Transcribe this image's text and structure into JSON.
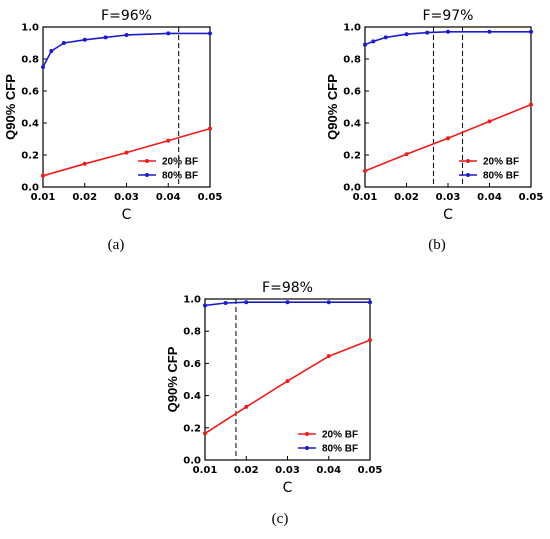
{
  "colors": {
    "series1": "#ee1c1c",
    "series2": "#1c1ccc",
    "dashed": "#000000"
  },
  "chart_data": [
    {
      "type": "line",
      "panel_caption": "(a)",
      "title": "F=96%",
      "xlabel": "C",
      "ylabel": "Q90% CFP",
      "xlim": [
        0.01,
        0.05
      ],
      "ylim": [
        0,
        1.0
      ],
      "xticks": [
        "0.01",
        "0.02",
        "0.03",
        "0.04",
        "0.05"
      ],
      "yticks": [
        "0.0",
        "0.2",
        "0.4",
        "0.6",
        "0.8",
        "1.0"
      ],
      "legend_position": "bottom-right",
      "series": [
        {
          "name": "20% BF",
          "color": "#ee1c1c",
          "x": [
            0.01,
            0.02,
            0.03,
            0.04,
            0.05
          ],
          "y": [
            0.07,
            0.145,
            0.215,
            0.29,
            0.365
          ]
        },
        {
          "name": "80% BF",
          "color": "#1c1ccc",
          "x": [
            0.01,
            0.012,
            0.015,
            0.02,
            0.025,
            0.03,
            0.04,
            0.05
          ],
          "y": [
            0.75,
            0.85,
            0.9,
            0.92,
            0.935,
            0.95,
            0.96,
            0.96
          ]
        }
      ],
      "dashed_lines_x": [
        0.0425,
        0.05
      ]
    },
    {
      "type": "line",
      "panel_caption": "(b)",
      "title": "F=97%",
      "xlabel": "C",
      "ylabel": "Q90% CFP",
      "xlim": [
        0.01,
        0.05
      ],
      "ylim": [
        0,
        1.0
      ],
      "xticks": [
        "0.01",
        "0.02",
        "0.03",
        "0.04",
        "0.05"
      ],
      "yticks": [
        "0.0",
        "0.2",
        "0.4",
        "0.6",
        "0.8",
        "1.0"
      ],
      "legend_position": "bottom-right",
      "series": [
        {
          "name": "20% BF",
          "color": "#ee1c1c",
          "x": [
            0.01,
            0.02,
            0.03,
            0.04,
            0.05
          ],
          "y": [
            0.1,
            0.205,
            0.305,
            0.41,
            0.515
          ]
        },
        {
          "name": "80% BF",
          "color": "#1c1ccc",
          "x": [
            0.01,
            0.012,
            0.015,
            0.02,
            0.025,
            0.03,
            0.04,
            0.05
          ],
          "y": [
            0.89,
            0.91,
            0.935,
            0.955,
            0.965,
            0.97,
            0.97,
            0.97
          ]
        }
      ],
      "dashed_lines_x": [
        0.0265,
        0.0335
      ]
    },
    {
      "type": "line",
      "panel_caption": "(c)",
      "title": "F=98%",
      "xlabel": "C",
      "ylabel": "Q90% CFP",
      "xlim": [
        0.01,
        0.05
      ],
      "ylim": [
        0,
        1.0
      ],
      "xticks": [
        "0.01",
        "0.02",
        "0.03",
        "0.04",
        "0.05"
      ],
      "yticks": [
        "0.0",
        "0.2",
        "0.4",
        "0.6",
        "0.8",
        "1.0"
      ],
      "legend_position": "bottom-right",
      "series": [
        {
          "name": "20% BF",
          "color": "#ee1c1c",
          "x": [
            0.01,
            0.02,
            0.03,
            0.04,
            0.05
          ],
          "y": [
            0.165,
            0.33,
            0.49,
            0.645,
            0.745
          ]
        },
        {
          "name": "80% BF",
          "color": "#1c1ccc",
          "x": [
            0.01,
            0.015,
            0.02,
            0.03,
            0.04,
            0.05
          ],
          "y": [
            0.96,
            0.975,
            0.98,
            0.98,
            0.98,
            0.98
          ]
        }
      ],
      "dashed_lines_x": [
        0.0175
      ]
    }
  ]
}
